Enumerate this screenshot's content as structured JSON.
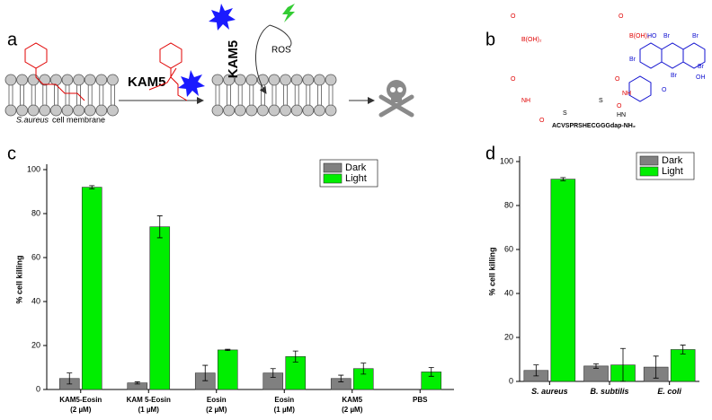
{
  "panel_labels": [
    "a",
    "b",
    "c",
    "d"
  ],
  "diagram": {
    "peptide": "KAM5",
    "ros": "ROS",
    "membrane_species": "S.aureus",
    "membrane_label": "cell membrane"
  },
  "structure": {
    "boronic_acid": "B(OH)₂",
    "carbonyl": "O",
    "amide": "NH",
    "sulfur": "S",
    "hn": "HN",
    "sequence": "ACVSPRSHECGGGdap-NH₂",
    "hydroxyl_left": "HO",
    "hydroxyl_right": "OH",
    "bromine": "Br"
  },
  "chart_data": [
    {
      "type": "bar",
      "y_label": "% cell killing",
      "categories": [
        "KAM5-Eosin\n(2 µM)",
        "KAM 5-Eosin\n(1 µM)",
        "Eosin\n(2 µM)",
        "Eosin\n(1 µM)",
        "KAM5\n(2 µM)",
        "PBS"
      ],
      "series": [
        {
          "name": "Dark",
          "color": "#808080",
          "values": [
            5,
            3,
            7.5,
            7.5,
            5,
            null
          ],
          "errors": [
            2.5,
            0.5,
            3.5,
            2,
            1.5,
            null
          ]
        },
        {
          "name": "Light",
          "color": "#00ee00",
          "values": [
            92,
            74,
            18,
            15,
            9.5,
            8
          ],
          "errors": [
            0.7,
            5,
            0.3,
            2.5,
            2.5,
            2
          ]
        }
      ],
      "ylim": [
        0,
        100
      ],
      "yticks": [
        0,
        20,
        40,
        60,
        80,
        100
      ],
      "legend": "upper right",
      "category_style": "normal"
    },
    {
      "type": "bar",
      "y_label": "% cell killing",
      "categories": [
        "S. aureus",
        "B. subtilis",
        "E. coli"
      ],
      "series": [
        {
          "name": "Dark",
          "color": "#808080",
          "values": [
            5,
            7,
            6.5
          ],
          "errors": [
            2.5,
            1,
            5
          ]
        },
        {
          "name": "Light",
          "color": "#00ee00",
          "values": [
            92,
            7.5,
            14.5
          ],
          "errors": [
            0.7,
            7.5,
            2
          ]
        }
      ],
      "ylim": [
        0,
        100
      ],
      "yticks": [
        0,
        20,
        40,
        60,
        80,
        100
      ],
      "legend": "upper right",
      "category_style": "italic"
    }
  ]
}
